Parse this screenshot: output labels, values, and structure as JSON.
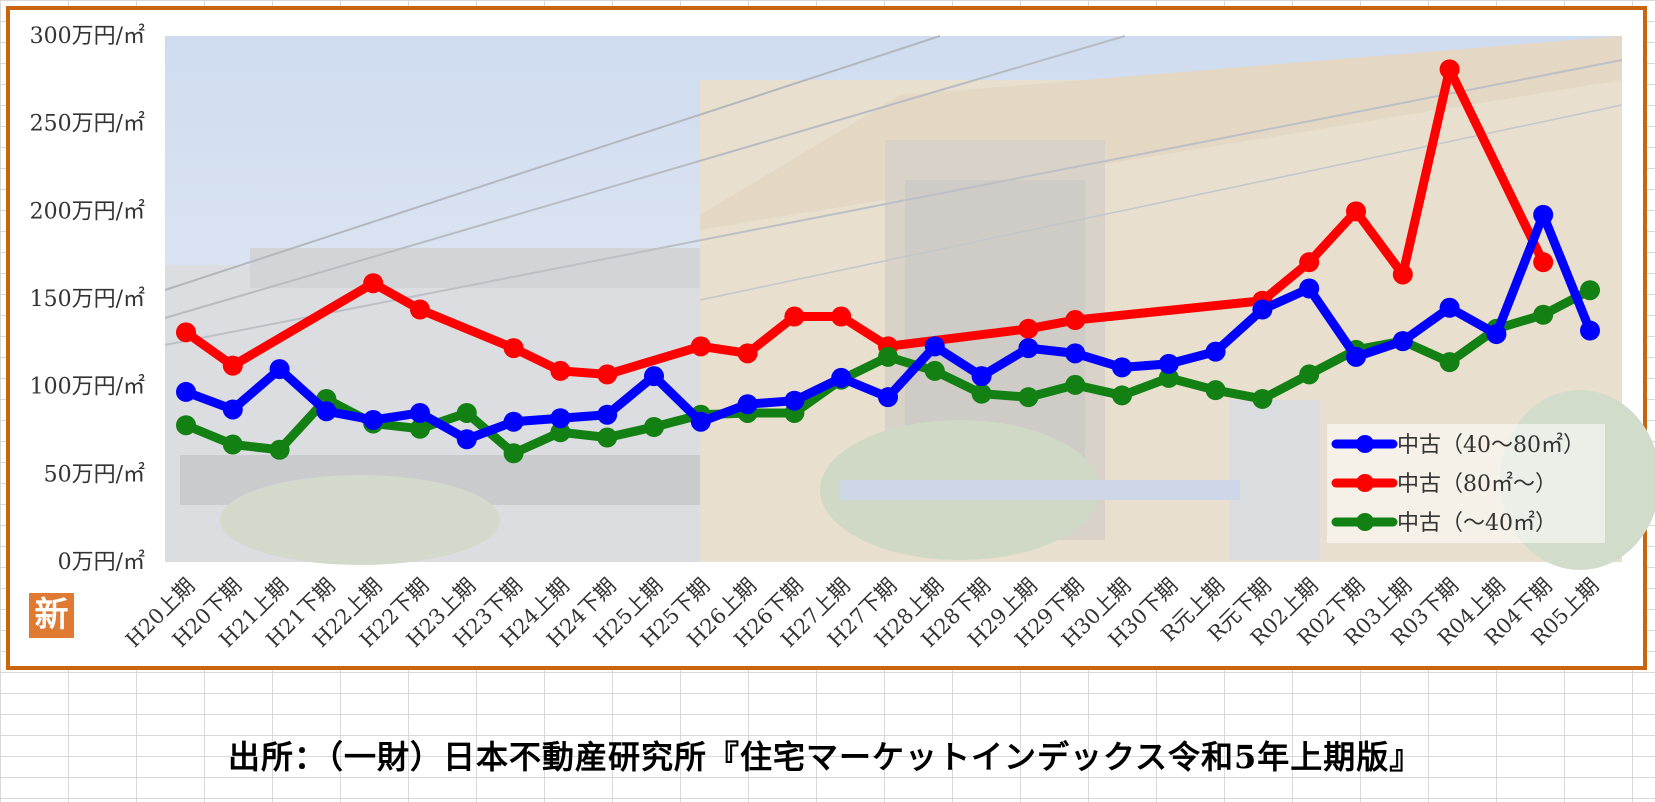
{
  "badge_text": "新",
  "source_text": "出所：（一財）日本不動産研究所『住宅マーケットインデックス令和5年上期版』",
  "chart_data": {
    "type": "line",
    "title": "",
    "xlabel": "",
    "ylabel": "",
    "ylim": [
      0,
      300
    ],
    "y_ticks": [
      {
        "value": 0,
        "label": "0万円/㎡"
      },
      {
        "value": 50,
        "label": "50万円/㎡"
      },
      {
        "value": 100,
        "label": "100万円/㎡"
      },
      {
        "value": 150,
        "label": "150万円/㎡"
      },
      {
        "value": 200,
        "label": "200万円/㎡"
      },
      {
        "value": 250,
        "label": "250万円/㎡"
      },
      {
        "value": 300,
        "label": "300万円/㎡"
      }
    ],
    "categories": [
      "H20上期",
      "H20下期",
      "H21上期",
      "H21下期",
      "H22上期",
      "H22下期",
      "H23上期",
      "H23下期",
      "H24上期",
      "H24下期",
      "H25上期",
      "H25下期",
      "H26上期",
      "H26下期",
      "H27上期",
      "H27下期",
      "H28上期",
      "H28下期",
      "H29上期",
      "H29下期",
      "H30上期",
      "H30下期",
      "R元上期",
      "R元下期",
      "R02上期",
      "R02下期",
      "R03上期",
      "R03下期",
      "R04上期",
      "R04下期",
      "R05上期"
    ],
    "legend_position": "bottom-right",
    "grid": false,
    "series": [
      {
        "name": "中古（40～80㎡）",
        "color": "#0000ff",
        "values": [
          97,
          87,
          110,
          86,
          81,
          85,
          70,
          80,
          82,
          84,
          106,
          80,
          90,
          92,
          105,
          94,
          123,
          106,
          122,
          119,
          111,
          113,
          120,
          144,
          156,
          117,
          126,
          145,
          130,
          198,
          132
        ]
      },
      {
        "name": "中古（80㎡～）",
        "color": "#ff0000",
        "values": [
          131,
          112,
          null,
          null,
          159,
          144,
          null,
          122,
          109,
          107,
          null,
          123,
          119,
          140,
          140,
          123,
          null,
          null,
          133,
          138,
          null,
          null,
          null,
          149,
          171,
          200,
          164,
          281,
          null,
          171,
          null
        ]
      },
      {
        "name": "中古（～40㎡）",
        "color": "#138013",
        "values": [
          78,
          67,
          64,
          93,
          79,
          76,
          85,
          62,
          74,
          71,
          77,
          84,
          85,
          85,
          104,
          117,
          109,
          96,
          94,
          101,
          95,
          105,
          98,
          93,
          107,
          121,
          126,
          114,
          133,
          141,
          155
        ]
      }
    ]
  }
}
